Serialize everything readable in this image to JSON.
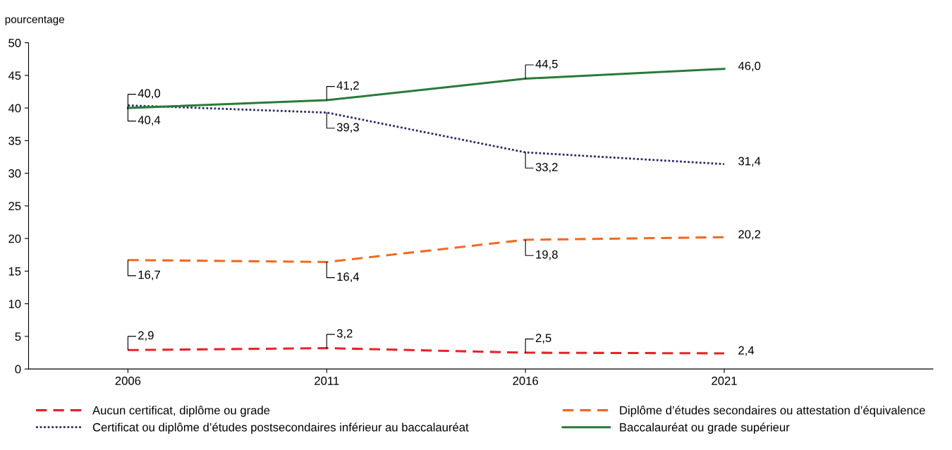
{
  "chart_data": {
    "type": "line",
    "ylabel": "pourcentage",
    "categories": [
      "2006",
      "2011",
      "2016",
      "2021"
    ],
    "series": [
      {
        "name": "Aucun certificat, diplôme ou grade",
        "color": "#e8232b",
        "line_style": "dashed",
        "values": [
          2.9,
          3.2,
          2.5,
          2.4
        ],
        "value_labels": [
          "2,9",
          "3,2",
          "2,5",
          "2,4"
        ]
      },
      {
        "name": "Diplôme d’études secondaires ou attestation d’équivalence",
        "color": "#f06a24",
        "line_style": "dashed",
        "values": [
          16.7,
          16.4,
          19.8,
          20.2
        ],
        "value_labels": [
          "16,7",
          "16,4",
          "19,8",
          "20,2"
        ]
      },
      {
        "name": "Certificat ou diplôme d’études postsecondaires inférieur au baccalauréat",
        "color": "#2b2a6b",
        "line_style": "dotted",
        "values": [
          40.4,
          39.3,
          33.2,
          31.4
        ],
        "value_labels": [
          "40,4",
          "39,3",
          "33,2",
          "31,4"
        ]
      },
      {
        "name": "Baccalauréat ou grade supérieur",
        "color": "#2a7a3b",
        "line_style": "solid",
        "values": [
          40.0,
          41.2,
          44.5,
          46.0
        ],
        "value_labels": [
          "40,0",
          "41,2",
          "44,5",
          "46,0"
        ]
      }
    ],
    "ylim": [
      0,
      50
    ],
    "yticks": [
      0,
      5,
      10,
      15,
      20,
      25,
      30,
      35,
      40,
      45,
      50
    ],
    "grid": false,
    "legend": "bottom",
    "marker": "none"
  }
}
